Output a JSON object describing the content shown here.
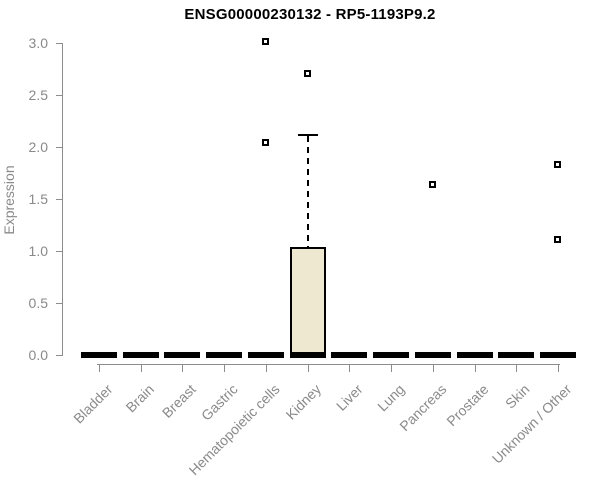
{
  "chart_data": {
    "type": "boxplot",
    "title": "ENSG00000230132 - RP5-1193P9.2",
    "ylabel": "Expression",
    "xlabel": "",
    "ylim": [
      0.0,
      3.0
    ],
    "yticks": [
      0.0,
      0.5,
      1.0,
      1.5,
      2.0,
      2.5,
      3.0
    ],
    "grid": false,
    "legend": "none",
    "categories": [
      "Bladder",
      "Brain",
      "Breast",
      "Gastric",
      "Hematopoietic cells",
      "Kidney",
      "Liver",
      "Lung",
      "Pancreas",
      "Prostate",
      "Skin",
      "Unknown / Other"
    ],
    "boxes": [
      {
        "category": "Bladder",
        "whisker_low": 0,
        "q1": 0,
        "median": 0,
        "q3": 0,
        "whisker_high": 0,
        "outliers": []
      },
      {
        "category": "Brain",
        "whisker_low": 0,
        "q1": 0,
        "median": 0,
        "q3": 0,
        "whisker_high": 0,
        "outliers": []
      },
      {
        "category": "Breast",
        "whisker_low": 0,
        "q1": 0,
        "median": 0,
        "q3": 0,
        "whisker_high": 0,
        "outliers": []
      },
      {
        "category": "Gastric",
        "whisker_low": 0,
        "q1": 0,
        "median": 0,
        "q3": 0,
        "whisker_high": 0,
        "outliers": []
      },
      {
        "category": "Hematopoietic cells",
        "whisker_low": 0,
        "q1": 0,
        "median": 0,
        "q3": 0,
        "whisker_high": 0,
        "outliers": [
          2.04,
          3.01
        ]
      },
      {
        "category": "Kidney",
        "whisker_low": 0,
        "q1": 0,
        "median": 0,
        "q3": 1.04,
        "whisker_high": 2.12,
        "outliers": [
          2.7
        ]
      },
      {
        "category": "Liver",
        "whisker_low": 0,
        "q1": 0,
        "median": 0,
        "q3": 0,
        "whisker_high": 0,
        "outliers": []
      },
      {
        "category": "Lung",
        "whisker_low": 0,
        "q1": 0,
        "median": 0,
        "q3": 0,
        "whisker_high": 0,
        "outliers": []
      },
      {
        "category": "Pancreas",
        "whisker_low": 0,
        "q1": 0,
        "median": 0,
        "q3": 0,
        "whisker_high": 0,
        "outliers": [
          1.63
        ]
      },
      {
        "category": "Prostate",
        "whisker_low": 0,
        "q1": 0,
        "median": 0,
        "q3": 0,
        "whisker_high": 0,
        "outliers": []
      },
      {
        "category": "Skin",
        "whisker_low": 0,
        "q1": 0,
        "median": 0,
        "q3": 0,
        "whisker_high": 0,
        "outliers": []
      },
      {
        "category": "Unknown / Other",
        "whisker_low": 0,
        "q1": 0,
        "median": 0,
        "q3": 0,
        "whisker_high": 0,
        "outliers": [
          1.11,
          1.83
        ]
      }
    ],
    "colors": {
      "box_fill": "#ede8cf",
      "box_border": "#000000",
      "median": "#000000",
      "outlier": "#000000",
      "axis": "#8c8c8c",
      "label": "#8a8a8a",
      "title": "#000000",
      "background": "#ffffff"
    }
  }
}
